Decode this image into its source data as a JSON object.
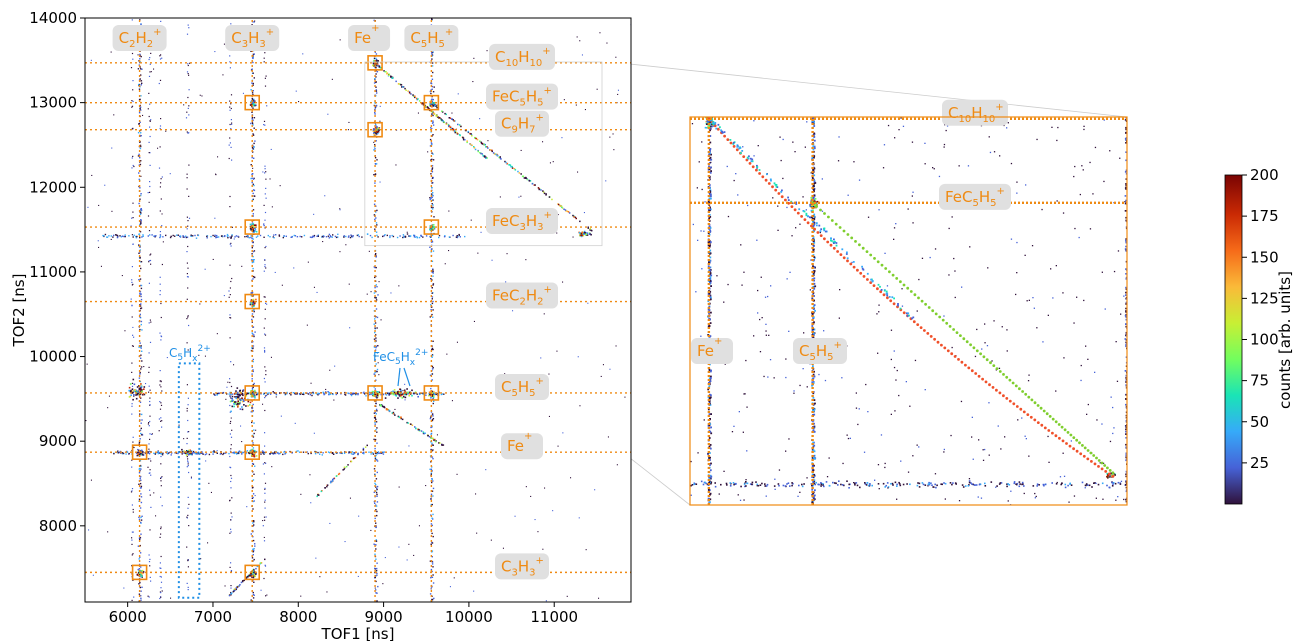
{
  "chart_data": [
    {
      "type": "scatter",
      "panel": "main",
      "xlabel": "TOF1 [ns]",
      "ylabel": "TOF2 [ns]",
      "xlim": [
        5500,
        11900
      ],
      "ylim": [
        7100,
        14000
      ],
      "xticks": [
        "6000",
        "7000",
        "8000",
        "9000",
        "10000",
        "11000"
      ],
      "yticks": [
        "8000",
        "9000",
        "10000",
        "11000",
        "12000",
        "13000",
        "14000"
      ],
      "vlines": [
        6140,
        7460,
        8900,
        9560
      ],
      "hlines": [
        13470,
        13000,
        12680,
        11530,
        10650,
        9570,
        8870,
        7450
      ],
      "top_labels": [
        {
          "x": 6140,
          "base": "C",
          "sub1": "2",
          "mid": "H",
          "sub2": "2",
          "sup": "+"
        },
        {
          "x": 7460,
          "base": "C",
          "sub1": "3",
          "mid": "H",
          "sub2": "3",
          "sup": "+"
        },
        {
          "x": 8900,
          "base": "Fe",
          "sub1": "",
          "mid": "",
          "sub2": "",
          "sup": "+"
        },
        {
          "x": 9560,
          "base": "C",
          "sub1": "5",
          "mid": "H",
          "sub2": "5",
          "sup": "+"
        }
      ],
      "right_labels": [
        {
          "y": 13470,
          "base": "C",
          "sub1": "10",
          "mid": "H",
          "sub2": "10",
          "sup": "+"
        },
        {
          "y": 13000,
          "base": "FeC",
          "sub1": "5",
          "mid": "H",
          "sub2": "5",
          "sup": "+"
        },
        {
          "y": 12680,
          "base": "C",
          "sub1": "9",
          "mid": "H",
          "sub2": "7",
          "sup": "+"
        },
        {
          "y": 11530,
          "base": "FeC",
          "sub1": "3",
          "mid": "H",
          "sub2": "3",
          "sup": "+"
        },
        {
          "y": 10650,
          "base": "FeC",
          "sub1": "2",
          "mid": "H",
          "sub2": "2",
          "sup": "+"
        },
        {
          "y": 9570,
          "base": "C",
          "sub1": "5",
          "mid": "H",
          "sub2": "5",
          "sup": "+"
        },
        {
          "y": 8870,
          "base": "Fe",
          "sub1": "",
          "mid": "",
          "sub2": "",
          "sup": "+"
        },
        {
          "y": 7450,
          "base": "C",
          "sub1": "3",
          "mid": "H",
          "sub2": "3",
          "sup": "+"
        }
      ],
      "blue_annotations": [
        {
          "base": "C",
          "sub1": "5",
          "mid": "H",
          "sub2": "x",
          "sup": "2+"
        },
        {
          "base": "FeC",
          "sub1": "5",
          "mid": "H",
          "sub2": "x",
          "sup": "2+"
        }
      ],
      "blue_box": {
        "x": [
          6600,
          6840
        ],
        "y": [
          7150,
          9920
        ]
      },
      "coincidence_boxes": [
        [
          6140,
          8870
        ],
        [
          6140,
          7450
        ],
        [
          7460,
          13000
        ],
        [
          7460,
          11530
        ],
        [
          7460,
          10650
        ],
        [
          7460,
          9570
        ],
        [
          7460,
          8870
        ],
        [
          7460,
          7450
        ],
        [
          8900,
          13470
        ],
        [
          8900,
          12680
        ],
        [
          8900,
          9570
        ],
        [
          9560,
          13000
        ],
        [
          9560,
          11530
        ],
        [
          9560,
          9570
        ]
      ],
      "zoom_region": {
        "x": [
          8780,
          11560
        ],
        "y": [
          11310,
          13480
        ]
      }
    },
    {
      "type": "scatter",
      "panel": "zoom",
      "xlim": [
        8780,
        11560
      ],
      "ylim": [
        11310,
        13480
      ],
      "vlines": [
        8900,
        9560
      ],
      "hlines": [
        13470,
        13000
      ],
      "labels": [
        {
          "base": "C",
          "sub1": "10",
          "mid": "H",
          "sub2": "10",
          "sup": "+"
        },
        {
          "base": "FeC",
          "sub1": "5",
          "mid": "H",
          "sub2": "5",
          "sup": "+"
        },
        {
          "base": "Fe",
          "sub1": "",
          "mid": "",
          "sub2": "",
          "sup": "+"
        },
        {
          "base": "C",
          "sub1": "5",
          "mid": "H",
          "sub2": "5",
          "sup": "+"
        }
      ]
    }
  ],
  "colorbar": {
    "label": "counts [arb. units]",
    "ticks": [
      "25",
      "50",
      "75",
      "100",
      "125",
      "150",
      "175",
      "200"
    ],
    "range": [
      0,
      200
    ],
    "colormap": [
      "#30123b",
      "#4662d7",
      "#36aaf9",
      "#1ae4b6",
      "#72fe5e",
      "#c8ef34",
      "#faba39",
      "#f66b19",
      "#ca2a04",
      "#7a0403"
    ]
  },
  "colors": {
    "accent": "#ef8a12",
    "blue": "#1f8fe6",
    "label_bg": "#e0e0e0"
  }
}
